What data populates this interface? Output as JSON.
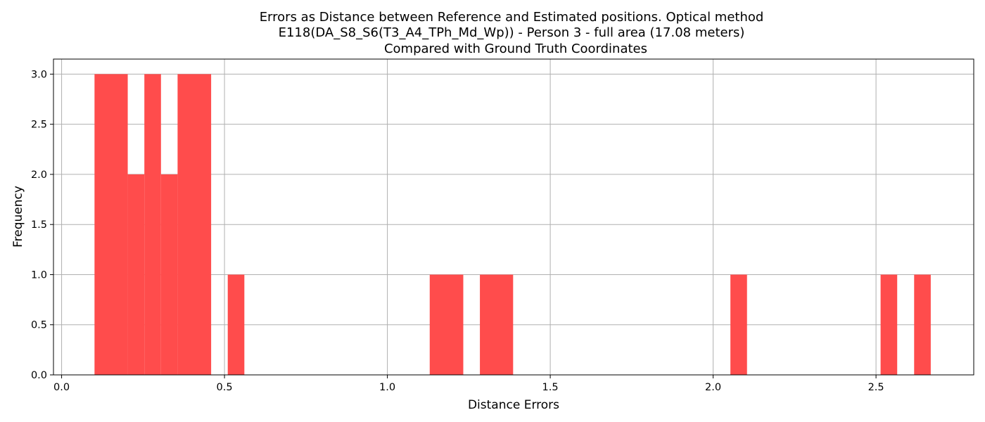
{
  "chart_data": {
    "type": "bar",
    "title_lines": [
      "Errors as Distance between Reference and Estimated positions. Optical method",
      "E118(DA_S8_S6(T3_A4_TPh_Md_Wp)) - Person 3 - full area (17.08 meters)",
      "Compared with Ground Truth Coordinates"
    ],
    "xlabel": "Distance Errors",
    "ylabel": "Frequency",
    "xlim": [
      -0.025,
      2.8
    ],
    "ylim": [
      0,
      3.15
    ],
    "xticks": [
      0.0,
      0.5,
      1.0,
      1.5,
      2.0,
      2.5
    ],
    "xtick_labels": [
      "0.0",
      "0.5",
      "1.0",
      "1.5",
      "2.0",
      "2.5"
    ],
    "yticks": [
      0.0,
      0.5,
      1.0,
      1.5,
      2.0,
      2.5,
      3.0
    ],
    "ytick_labels": [
      "0.0",
      "0.5",
      "1.0",
      "1.5",
      "2.0",
      "2.5",
      "3.0"
    ],
    "grid": true,
    "bar_color": "#ff4c4c",
    "bins": [
      {
        "x0": 0.101,
        "x1": 0.203,
        "count": 3
      },
      {
        "x0": 0.203,
        "x1": 0.254,
        "count": 2
      },
      {
        "x0": 0.254,
        "x1": 0.305,
        "count": 3
      },
      {
        "x0": 0.305,
        "x1": 0.356,
        "count": 2
      },
      {
        "x0": 0.356,
        "x1": 0.459,
        "count": 3
      },
      {
        "x0": 0.51,
        "x1": 0.561,
        "count": 1
      },
      {
        "x0": 1.13,
        "x1": 1.233,
        "count": 1
      },
      {
        "x0": 1.284,
        "x1": 1.386,
        "count": 1
      },
      {
        "x0": 2.053,
        "x1": 2.104,
        "count": 1
      },
      {
        "x0": 2.514,
        "x1": 2.565,
        "count": 1
      },
      {
        "x0": 2.617,
        "x1": 2.668,
        "count": 1
      }
    ]
  }
}
